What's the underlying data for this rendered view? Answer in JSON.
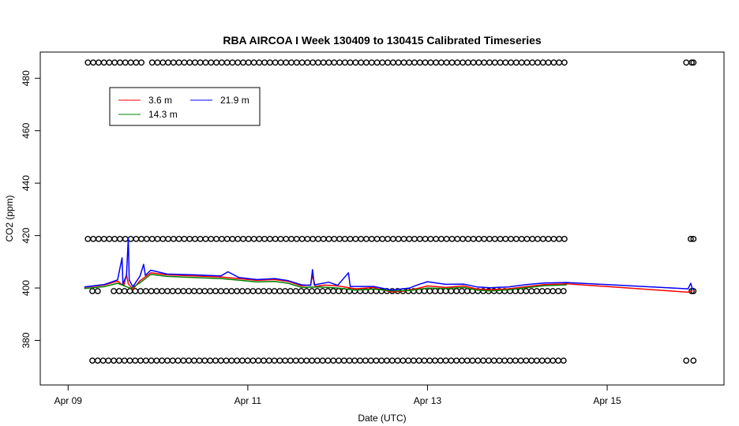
{
  "chart_data": {
    "type": "line",
    "title": "RBA AIRCOA I  Week 130409 to 130415  Calibrated Timeseries",
    "xlabel": "Date (UTC)",
    "ylabel": "CO2 (ppm)",
    "x_ticks": [
      {
        "day": 9,
        "label": "Apr 09"
      },
      {
        "day": 11,
        "label": "Apr 11"
      },
      {
        "day": 13,
        "label": "Apr 13"
      },
      {
        "day": 15,
        "label": "Apr 15"
      }
    ],
    "y_ticks": [
      380,
      400,
      420,
      440,
      460,
      480
    ],
    "xlim": [
      8.69,
      16.3
    ],
    "ylim": [
      363,
      490
    ],
    "grid": false,
    "legend_position": "top-left",
    "series": [
      {
        "name": "3.6 m",
        "color": "#ff0000",
        "points": [
          [
            9.18,
            400.3
          ],
          [
            9.4,
            401.1
          ],
          [
            9.55,
            402.6
          ],
          [
            9.62,
            400.8
          ],
          [
            9.65,
            405.2
          ],
          [
            9.67,
            401.6
          ],
          [
            9.72,
            399.5
          ],
          [
            9.8,
            402.8
          ],
          [
            9.92,
            405.8
          ],
          [
            10.1,
            405.0
          ],
          [
            10.4,
            404.6
          ],
          [
            10.7,
            404.2
          ],
          [
            10.9,
            403.6
          ],
          [
            11.1,
            402.9
          ],
          [
            11.3,
            403.2
          ],
          [
            11.45,
            402.5
          ],
          [
            11.6,
            400.8
          ],
          [
            11.7,
            401.2
          ],
          [
            11.72,
            405.0
          ],
          [
            11.75,
            400.6
          ],
          [
            11.85,
            401.1
          ],
          [
            12.0,
            400.8
          ],
          [
            12.2,
            399.7
          ],
          [
            12.4,
            400.2
          ],
          [
            12.5,
            399.2
          ],
          [
            12.6,
            398.5
          ],
          [
            12.75,
            398.8
          ],
          [
            12.9,
            399.9
          ],
          [
            13.0,
            400.8
          ],
          [
            13.2,
            400.2
          ],
          [
            13.4,
            400.8
          ],
          [
            13.55,
            399.6
          ],
          [
            13.7,
            399.3
          ],
          [
            13.9,
            399.7
          ],
          [
            14.1,
            400.5
          ],
          [
            14.3,
            401.3
          ],
          [
            14.55,
            401.6
          ],
          [
            15.9,
            398.4
          ],
          [
            15.95,
            399.0
          ]
        ]
      },
      {
        "name": "14.3 m",
        "color": "#008000",
        "points": [
          [
            9.18,
            399.8
          ],
          [
            9.4,
            400.5
          ],
          [
            9.55,
            401.8
          ],
          [
            9.7,
            399.8
          ],
          [
            9.8,
            402.0
          ],
          [
            9.92,
            405.2
          ],
          [
            10.1,
            404.4
          ],
          [
            10.4,
            404.0
          ],
          [
            10.7,
            403.6
          ],
          [
            10.9,
            403.0
          ],
          [
            11.1,
            402.3
          ],
          [
            11.3,
            402.5
          ],
          [
            11.45,
            401.8
          ],
          [
            11.6,
            400.2
          ],
          [
            11.8,
            400.4
          ],
          [
            12.0,
            400.0
          ],
          [
            12.2,
            399.2
          ],
          [
            12.4,
            399.6
          ],
          [
            12.6,
            398.9
          ],
          [
            12.8,
            399.0
          ],
          [
            13.0,
            400.0
          ],
          [
            13.2,
            399.8
          ],
          [
            13.4,
            400.2
          ],
          [
            13.55,
            399.2
          ],
          [
            13.7,
            398.9
          ],
          [
            13.9,
            399.3
          ],
          [
            14.1,
            400.1
          ],
          [
            14.3,
            400.9
          ],
          [
            14.55,
            401.2
          ]
        ]
      },
      {
        "name": "21.9 m",
        "color": "#0000ff",
        "points": [
          [
            9.18,
            400.4
          ],
          [
            9.4,
            401.3
          ],
          [
            9.55,
            403.1
          ],
          [
            9.6,
            411.5
          ],
          [
            9.61,
            401.5
          ],
          [
            9.65,
            404.8
          ],
          [
            9.67,
            419.0
          ],
          [
            9.68,
            403.0
          ],
          [
            9.72,
            400.5
          ],
          [
            9.8,
            404.5
          ],
          [
            9.84,
            409.0
          ],
          [
            9.86,
            404.8
          ],
          [
            9.92,
            406.8
          ],
          [
            10.1,
            405.3
          ],
          [
            10.4,
            405.0
          ],
          [
            10.7,
            404.6
          ],
          [
            10.78,
            406.2
          ],
          [
            10.9,
            404.0
          ],
          [
            11.1,
            403.2
          ],
          [
            11.3,
            403.6
          ],
          [
            11.45,
            402.8
          ],
          [
            11.6,
            401.2
          ],
          [
            11.7,
            401.0
          ],
          [
            11.72,
            407.0
          ],
          [
            11.74,
            401.2
          ],
          [
            11.9,
            402.2
          ],
          [
            12.0,
            401.0
          ],
          [
            12.12,
            405.8
          ],
          [
            12.14,
            400.6
          ],
          [
            12.4,
            400.6
          ],
          [
            12.6,
            399.2
          ],
          [
            12.8,
            400.0
          ],
          [
            12.9,
            401.3
          ],
          [
            13.0,
            402.4
          ],
          [
            13.2,
            401.4
          ],
          [
            13.4,
            401.5
          ],
          [
            13.55,
            400.4
          ],
          [
            13.7,
            400.1
          ],
          [
            13.9,
            400.4
          ],
          [
            14.1,
            401.3
          ],
          [
            14.3,
            401.9
          ],
          [
            14.55,
            402.1
          ],
          [
            15.9,
            399.7
          ],
          [
            15.93,
            401.8
          ],
          [
            15.95,
            399.4
          ]
        ]
      },
      {
        "name": "",
        "type": "scatter",
        "marker": "open-circle",
        "color": "#000000",
        "rows": [
          {
            "y": 486,
            "start": 9.22,
            "end": 14.55,
            "gaps": [
              [
                9.87,
                9.93
              ]
            ],
            "extra": [
              15.88,
              15.94,
              15.96
            ]
          },
          {
            "y": 418.7,
            "start": 9.22,
            "end": 14.55,
            "gaps": [],
            "extra": [
              15.93,
              15.96
            ]
          },
          {
            "y": 398.8,
            "start": 9.27,
            "end": 14.55,
            "gaps": [
              [
                9.38,
                9.45
              ]
            ],
            "extra": [
              15.94,
              15.96
            ]
          },
          {
            "y": 372.3,
            "start": 9.27,
            "end": 14.55,
            "gaps": [],
            "extra": [
              15.88,
              15.96
            ]
          }
        ]
      }
    ]
  }
}
